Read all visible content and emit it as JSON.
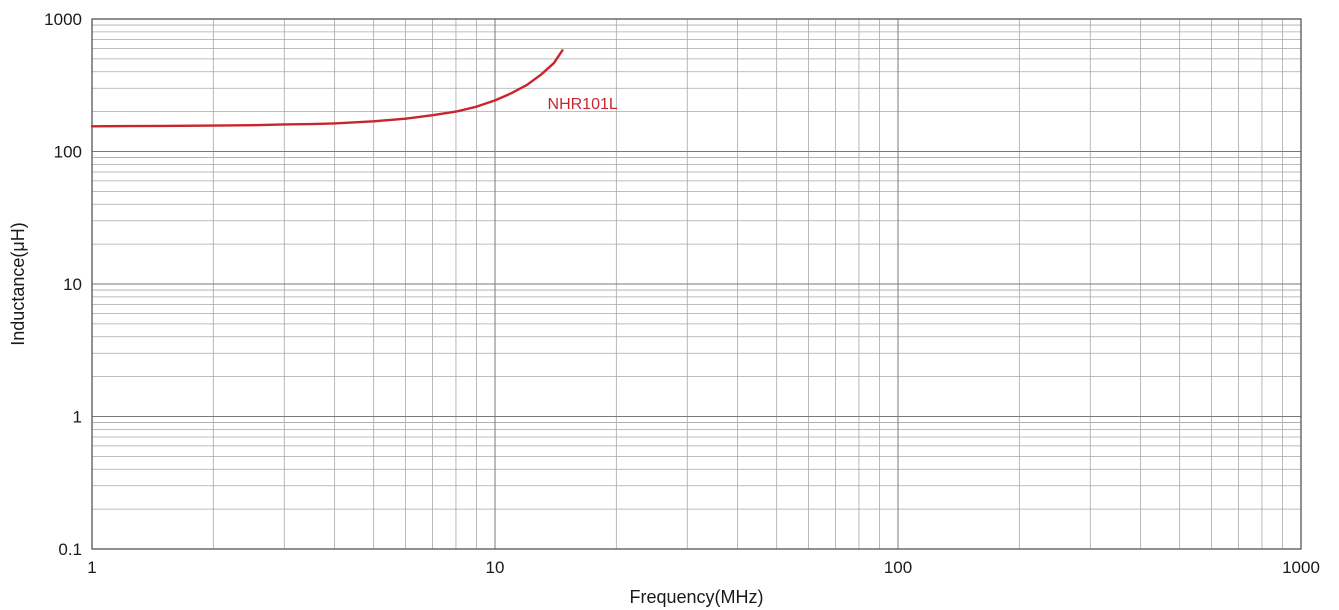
{
  "chart_data": {
    "type": "line",
    "xlabel": "Frequency(MHz)",
    "ylabel": "Inductance(μH)",
    "xscale": "log",
    "yscale": "log",
    "xlim": [
      1,
      1000
    ],
    "ylim": [
      0.1,
      1000
    ],
    "grid": true,
    "x_ticks": [
      1,
      10,
      100,
      1000
    ],
    "x_tick_labels": [
      "1",
      "10",
      "100",
      "1000"
    ],
    "y_ticks": [
      0.1,
      1,
      10,
      100,
      1000
    ],
    "y_tick_labels": [
      "0.1",
      "1",
      "10",
      "100",
      "1000"
    ],
    "colors": {
      "series": "#c8262c",
      "grid": "#a8a8a8",
      "frame": "#555555"
    },
    "series": [
      {
        "name": "NHR101L",
        "x": [
          1,
          1.5,
          2,
          2.5,
          3,
          3.5,
          4,
          4.5,
          5,
          6,
          7,
          8,
          9,
          10,
          11,
          12,
          13,
          14,
          14.7
        ],
        "y": [
          155,
          156,
          157,
          158,
          160,
          161,
          163,
          166,
          169,
          177,
          188,
          200,
          218,
          243,
          276,
          318,
          380,
          465,
          580
        ]
      }
    ]
  }
}
